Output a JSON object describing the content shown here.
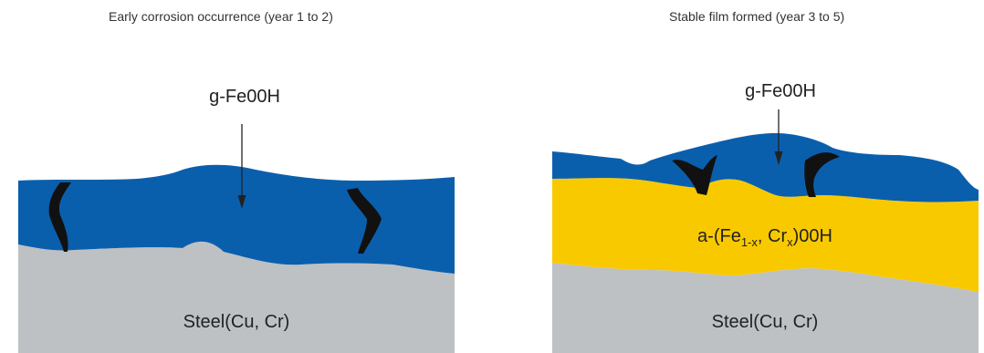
{
  "panels": [
    {
      "title": "Early corrosion occurrence (year 1 to 2)",
      "top_layer_label": "g-Fe00H",
      "substrate_label": "Steel(Cu, Cr)"
    },
    {
      "title": "Stable film formed (year 3 to 5)",
      "top_layer_label": "g-Fe00H",
      "middle_layer_label": {
        "prefix": "a-(Fe",
        "sub1": "1-x",
        "mid": ", Cr",
        "sub2": "x",
        "suffix": ")00H"
      },
      "substrate_label": "Steel(Cu, Cr)"
    }
  ],
  "colors": {
    "rust_layer": "#0a5fad",
    "stable_layer": "#f9c900",
    "steel": "#bdc1c3",
    "crack": "#111111"
  }
}
